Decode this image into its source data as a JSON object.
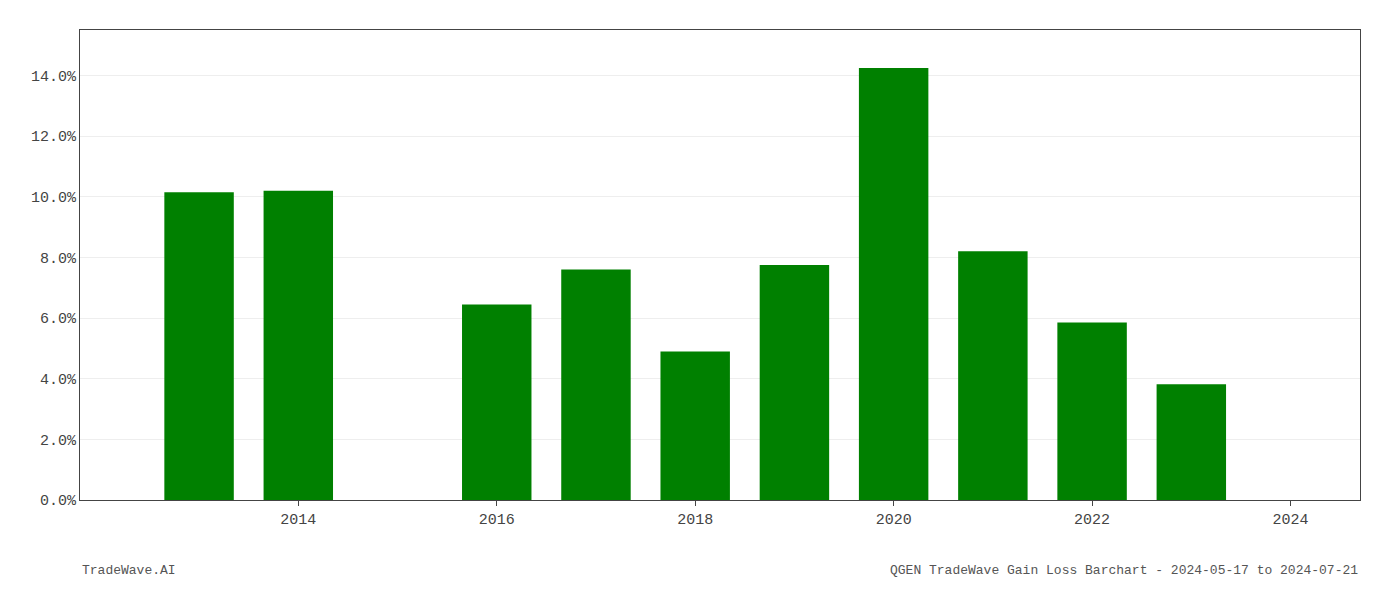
{
  "chart_data": {
    "type": "bar",
    "x": [
      2013,
      2014,
      2016,
      2017,
      2018,
      2019,
      2020,
      2021,
      2022,
      2023
    ],
    "values": [
      0.1015,
      0.102,
      0.0645,
      0.076,
      0.049,
      0.0775,
      0.1425,
      0.082,
      0.0585,
      0.0382
    ],
    "color": "#008000",
    "xlim": [
      2011.8,
      2024.7
    ],
    "xticks": [
      2014,
      2016,
      2018,
      2020,
      2022,
      2024
    ],
    "ylim": [
      0,
      0.155
    ],
    "yticks": [
      {
        "value": 0.0,
        "label": "0.0%"
      },
      {
        "value": 0.02,
        "label": "2.0%"
      },
      {
        "value": 0.04,
        "label": "4.0%"
      },
      {
        "value": 0.06,
        "label": "6.0%"
      },
      {
        "value": 0.08,
        "label": "8.0%"
      },
      {
        "value": 0.1,
        "label": "10.0%"
      },
      {
        "value": 0.12,
        "label": "12.0%"
      },
      {
        "value": 0.14,
        "label": "14.0%"
      }
    ],
    "grid": true,
    "annotations": [
      "TradeWave.AI",
      "QGEN TradeWave Gain Loss Barchart - 2024-05-17 to 2024-07-21"
    ]
  }
}
